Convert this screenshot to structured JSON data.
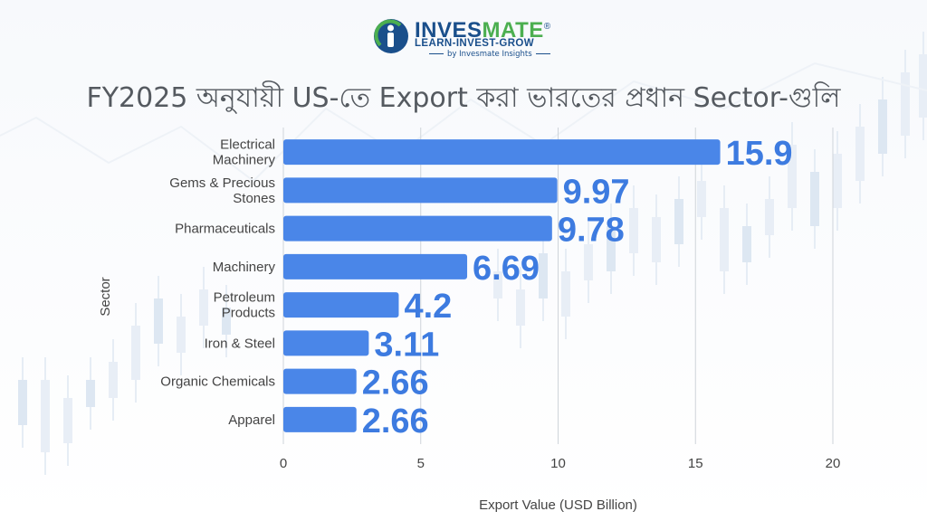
{
  "brand": {
    "name_part1": "INVES",
    "name_part2": "MATE",
    "registered_mark": "®",
    "tagline": "LEARN-INVEST-GROW",
    "byline": "by Invesmate Insights"
  },
  "colors": {
    "bar": "#4a86e8",
    "value_label": "#3d7be0",
    "grid": "#cfd4da",
    "axis_text": "#444444",
    "title": "#555a60"
  },
  "chart_data": {
    "type": "bar",
    "orientation": "horizontal",
    "title": "FY2025 অনুযায়ী US-তে Export করা ভারতের প্রধান Sector-গুলি",
    "xlabel": "Export Value (USD Billion)",
    "ylabel": "Sector",
    "categories": [
      "Electrical Machinery",
      "Gems & Precious Stones",
      "Pharmaceuticals",
      "Machinery",
      "Petroleum Products",
      "Iron & Steel",
      "Organic Chemicals",
      "Apparel"
    ],
    "category_lines": [
      [
        "Electrical",
        "Machinery"
      ],
      [
        "Gems & Precious",
        "Stones"
      ],
      [
        "Pharmaceuticals"
      ],
      [
        "Machinery"
      ],
      [
        "Petroleum",
        "Products"
      ],
      [
        "Iron & Steel"
      ],
      [
        "Organic Chemicals"
      ],
      [
        "Apparel"
      ]
    ],
    "values": [
      15.9,
      9.97,
      9.78,
      6.69,
      4.2,
      3.11,
      2.66,
      2.66
    ],
    "value_labels": [
      "15.9",
      "9.97",
      "9.78",
      "6.69",
      "4.2",
      "3.11",
      "2.66",
      "2.66"
    ],
    "xlim": [
      0,
      20
    ],
    "xticks": [
      0,
      5,
      10,
      15,
      20
    ],
    "xtick_labels": [
      "0",
      "5",
      "10",
      "15",
      "20"
    ],
    "grid": "vertical",
    "legend": "none"
  }
}
